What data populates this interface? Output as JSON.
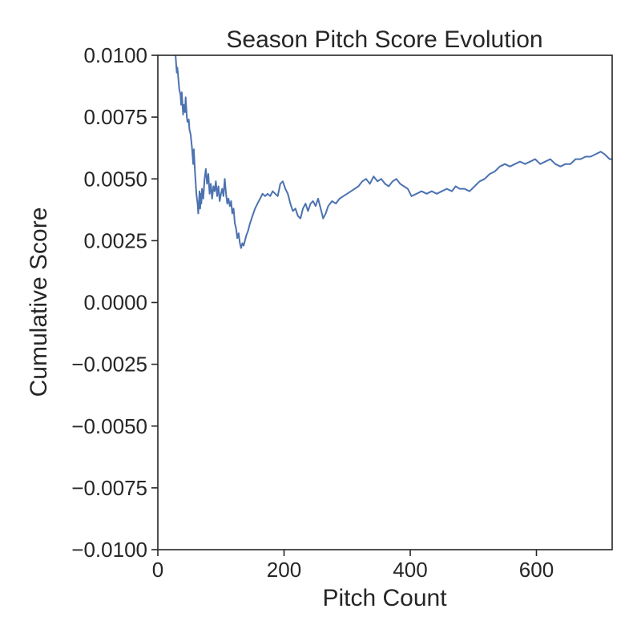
{
  "chart_data": {
    "type": "line",
    "title": "Season Pitch Score Evolution",
    "xlabel": "Pitch Count",
    "ylabel": "Cumulative Score",
    "xlim": [
      0,
      720
    ],
    "ylim": [
      -0.01,
      0.01
    ],
    "xticks": [
      0,
      200,
      400,
      600
    ],
    "xtick_labels": [
      "0",
      "200",
      "400",
      "600"
    ],
    "yticks": [
      0.01,
      0.0075,
      0.005,
      0.0025,
      0.0,
      -0.0025,
      -0.005,
      -0.0075,
      -0.01
    ],
    "ytick_labels": [
      "0.0100",
      "0.0075",
      "0.0050",
      "0.0025",
      "0.0000",
      "−0.0025",
      "−0.0050",
      "−0.0075",
      "−0.0100"
    ],
    "grid": false,
    "line_color": "#4c72b0",
    "axis_color": "#262626",
    "series": [
      {
        "x": [
          28,
          30,
          31,
          33,
          34,
          36,
          37,
          38,
          40,
          41,
          43,
          44,
          46,
          47,
          49,
          50,
          52,
          54,
          56,
          57,
          59,
          60,
          61,
          62,
          63,
          64,
          65,
          66,
          67,
          68,
          69,
          70,
          72,
          74,
          76,
          78,
          80,
          82,
          84,
          86,
          88,
          90,
          92,
          94,
          96,
          98,
          100,
          102,
          104,
          106,
          108,
          110,
          112,
          114,
          116,
          118,
          120,
          122,
          124,
          126,
          128,
          130,
          132,
          134,
          136,
          138,
          140,
          143,
          146,
          150,
          154,
          158,
          162,
          166,
          170,
          174,
          178,
          182,
          186,
          190,
          194,
          198,
          202,
          206,
          210,
          214,
          218,
          222,
          226,
          230,
          234,
          238,
          242,
          246,
          250,
          254,
          258,
          262,
          266,
          270,
          276,
          282,
          288,
          294,
          300,
          306,
          312,
          318,
          324,
          330,
          336,
          342,
          348,
          354,
          360,
          366,
          372,
          378,
          384,
          390,
          396,
          402,
          410,
          418,
          426,
          434,
          442,
          450,
          458,
          466,
          472,
          478,
          486,
          494,
          502,
          510,
          518,
          526,
          534,
          542,
          550,
          558,
          566,
          574,
          582,
          590,
          598,
          606,
          614,
          622,
          630,
          638,
          646,
          654,
          662,
          670,
          678,
          686,
          694,
          702,
          708,
          712,
          716,
          720
        ],
        "y": [
          0.01,
          0.0093,
          0.0095,
          0.0089,
          0.0086,
          0.0084,
          0.008,
          0.0085,
          0.0076,
          0.008,
          0.0077,
          0.0083,
          0.0075,
          0.0073,
          0.0074,
          0.007,
          0.0068,
          0.0063,
          0.0056,
          0.0062,
          0.0052,
          0.0048,
          0.0044,
          0.0042,
          0.004,
          0.0036,
          0.004,
          0.0045,
          0.0038,
          0.0044,
          0.004,
          0.0046,
          0.0042,
          0.005,
          0.0054,
          0.0048,
          0.0052,
          0.0044,
          0.0048,
          0.0042,
          0.0047,
          0.0045,
          0.0049,
          0.0043,
          0.0047,
          0.0041,
          0.0044,
          0.0046,
          0.0043,
          0.005,
          0.0044,
          0.004,
          0.0042,
          0.0039,
          0.0041,
          0.0036,
          0.0038,
          0.0032,
          0.003,
          0.0026,
          0.0028,
          0.0024,
          0.0022,
          0.0024,
          0.0023,
          0.0025,
          0.0027,
          0.0029,
          0.0032,
          0.0035,
          0.0038,
          0.004,
          0.0042,
          0.0044,
          0.0043,
          0.0044,
          0.0043,
          0.0045,
          0.0044,
          0.0043,
          0.0048,
          0.0049,
          0.0046,
          0.0044,
          0.004,
          0.0037,
          0.0038,
          0.0035,
          0.0034,
          0.0038,
          0.004,
          0.0037,
          0.004,
          0.0041,
          0.0039,
          0.0042,
          0.0038,
          0.0034,
          0.0036,
          0.0039,
          0.0041,
          0.004,
          0.0042,
          0.0043,
          0.0044,
          0.0045,
          0.0046,
          0.0047,
          0.0049,
          0.005,
          0.0048,
          0.0051,
          0.0049,
          0.005,
          0.0048,
          0.0047,
          0.0049,
          0.005,
          0.0048,
          0.0047,
          0.0046,
          0.0043,
          0.0044,
          0.0045,
          0.0044,
          0.0045,
          0.0044,
          0.0045,
          0.0046,
          0.0045,
          0.0047,
          0.0046,
          0.0046,
          0.0045,
          0.0047,
          0.0049,
          0.005,
          0.0052,
          0.0053,
          0.0055,
          0.0056,
          0.0055,
          0.0056,
          0.0057,
          0.0056,
          0.0057,
          0.0058,
          0.0056,
          0.0057,
          0.0058,
          0.0056,
          0.0055,
          0.0056,
          0.0056,
          0.0058,
          0.0058,
          0.0059,
          0.0059,
          0.006,
          0.0061,
          0.006,
          0.0059,
          0.0058,
          0.0058
        ]
      }
    ]
  }
}
